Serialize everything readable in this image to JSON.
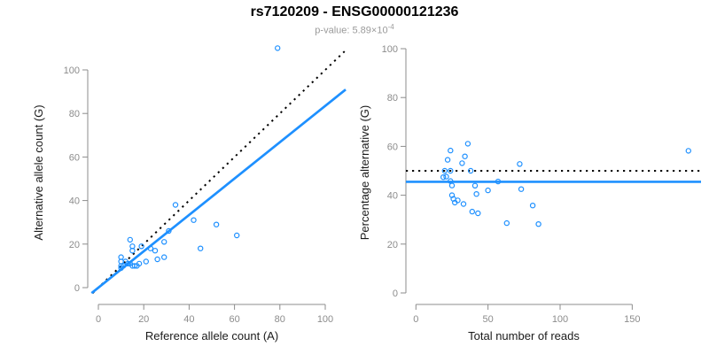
{
  "header": {
    "title": "rs7120209 - ENSG00000121236",
    "subtitle_prefix": "p-value: 5.89×10",
    "subtitle_exponent": "-4"
  },
  "colors": {
    "accent_blue": "#1E90FF",
    "axis_gray": "#8c8c8c",
    "tick_label_gray": "#8c8c8c",
    "title_black": "#000000",
    "subtitle_gray": "#9a9a9a"
  },
  "chart_data": [
    {
      "type": "scatter",
      "panel": "left",
      "xlabel": "Reference allele count (A)",
      "ylabel": "Alternative allele count (G)",
      "xlim": [
        0,
        107
      ],
      "ylim": [
        0,
        113
      ],
      "xticks": [
        0,
        20,
        40,
        60,
        80,
        100
      ],
      "yticks": [
        0,
        20,
        40,
        60,
        80,
        100
      ],
      "grid": false,
      "point_color": "#1E90FF",
      "points": [
        [
          79,
          110
        ],
        [
          34,
          38
        ],
        [
          42,
          31
        ],
        [
          52,
          29
        ],
        [
          61,
          24
        ],
        [
          45,
          18
        ],
        [
          29,
          21
        ],
        [
          31,
          26
        ],
        [
          14,
          22
        ],
        [
          15,
          19
        ],
        [
          10,
          14
        ],
        [
          15,
          17
        ],
        [
          23,
          18
        ],
        [
          25,
          17
        ],
        [
          26,
          13
        ],
        [
          29,
          14
        ],
        [
          10,
          12
        ],
        [
          12,
          12
        ],
        [
          10,
          10
        ],
        [
          11,
          10
        ],
        [
          13,
          11
        ],
        [
          14,
          11
        ],
        [
          15,
          10
        ],
        [
          10,
          9
        ],
        [
          16,
          10
        ],
        [
          17,
          10
        ],
        [
          18,
          11
        ],
        [
          21,
          12
        ],
        [
          19,
          19
        ]
      ],
      "lines": [
        {
          "name": "identity-line",
          "style": "dotted",
          "color": "#000000",
          "from": [
            -2.5,
            -2.5
          ],
          "to": [
            108.5,
            108.5
          ]
        },
        {
          "name": "fit-line",
          "style": "solid",
          "color": "#1E90FF",
          "from": [
            -3,
            -2.5
          ],
          "to": [
            109,
            91
          ]
        }
      ]
    },
    {
      "type": "scatter",
      "panel": "right",
      "xlabel": "Total number of reads",
      "ylabel": "Percentage alternative (G)",
      "xlim": [
        0,
        189
      ],
      "ylim": [
        0,
        100
      ],
      "xticks": [
        0,
        50,
        100,
        150
      ],
      "yticks": [
        0,
        20,
        40,
        60,
        80,
        100
      ],
      "grid": false,
      "point_color": "#1E90FF",
      "points": [
        [
          189,
          58.2
        ],
        [
          72,
          52.8
        ],
        [
          73,
          42.5
        ],
        [
          81,
          35.8
        ],
        [
          85,
          28.2
        ],
        [
          63,
          28.6
        ],
        [
          50,
          42.0
        ],
        [
          57,
          45.6
        ],
        [
          36,
          61.1
        ],
        [
          34,
          55.9
        ],
        [
          24,
          58.3
        ],
        [
          32,
          53.1
        ],
        [
          41,
          43.9
        ],
        [
          42,
          40.5
        ],
        [
          39,
          33.3
        ],
        [
          43,
          32.6
        ],
        [
          22,
          54.5
        ],
        [
          24,
          50.0
        ],
        [
          20,
          50.0
        ],
        [
          21,
          47.6
        ],
        [
          24,
          45.8
        ],
        [
          25,
          44.0
        ],
        [
          25,
          40.0
        ],
        [
          19,
          47.4
        ],
        [
          26,
          38.5
        ],
        [
          27,
          37.0
        ],
        [
          29,
          37.9
        ],
        [
          33,
          36.4
        ],
        [
          38,
          50.0
        ]
      ],
      "lines": [
        {
          "name": "null-line-50pct",
          "style": "dotted",
          "color": "#000000",
          "y": 50
        },
        {
          "name": "fit-line",
          "style": "solid",
          "color": "#1E90FF",
          "y": 45.5
        }
      ]
    }
  ]
}
